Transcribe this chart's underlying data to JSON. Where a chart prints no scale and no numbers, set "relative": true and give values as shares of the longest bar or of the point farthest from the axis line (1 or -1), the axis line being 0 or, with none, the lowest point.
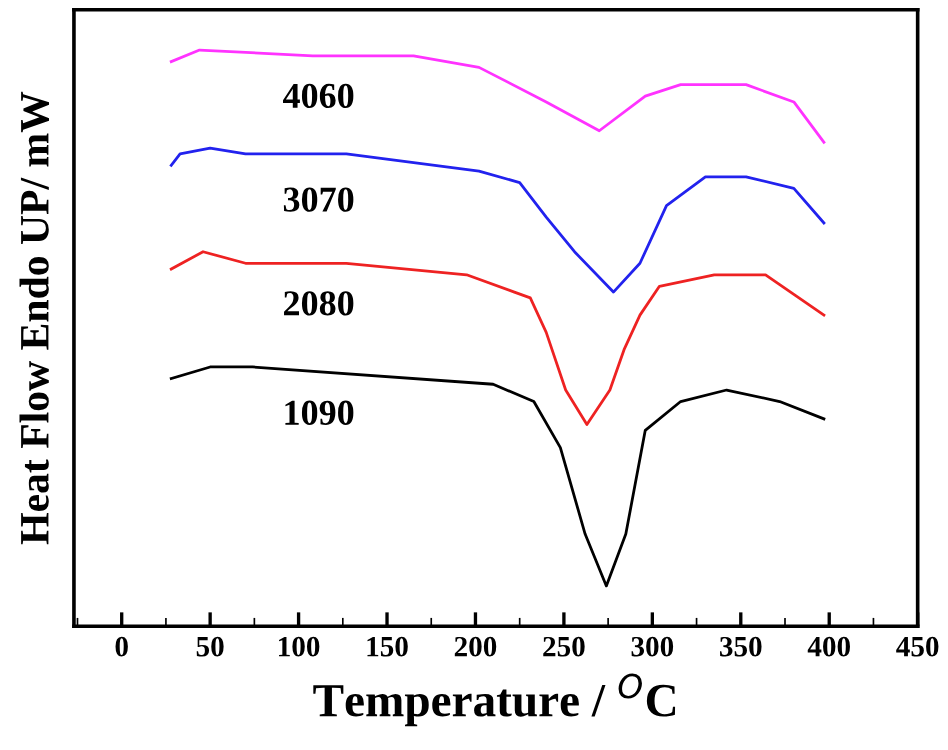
{
  "chart_data": {
    "type": "line",
    "xlabel": "Temperature / $^{O}$C",
    "ylabel": "Heat Flow Endo UP/ mW",
    "relative": true,
    "xlim": [
      -27,
      450
    ],
    "xticks": [
      0,
      50,
      100,
      150,
      200,
      250,
      300,
      350,
      400,
      450
    ],
    "grid": false,
    "legend": false,
    "marker": "none",
    "line_style": "solid",
    "series": [
      {
        "name": "4060",
        "color": "#ff33ff",
        "x": [
          28,
          44,
          108,
          165,
          202,
          240,
          270,
          296,
          316,
          353,
          380,
          397
        ],
        "values": [
          0.98,
          1.0,
          0.99,
          0.99,
          0.97,
          0.91,
          0.86,
          0.92,
          0.94,
          0.94,
          0.91,
          0.84
        ]
      },
      {
        "name": "3070",
        "color": "#2222ee",
        "x": [
          28,
          33,
          50,
          70,
          127,
          202,
          225,
          240,
          256,
          278,
          293,
          308,
          330,
          353,
          380,
          397
        ],
        "values": [
          0.8,
          0.82,
          0.83,
          0.82,
          0.82,
          0.79,
          0.77,
          0.71,
          0.65,
          0.58,
          0.63,
          0.73,
          0.78,
          0.78,
          0.76,
          0.7
        ]
      },
      {
        "name": "2080",
        "color": "#ee2222",
        "x": [
          28,
          46,
          70,
          127,
          195,
          222,
          231,
          240,
          251,
          263,
          276,
          284,
          293,
          304,
          335,
          364,
          397
        ],
        "values": [
          0.62,
          0.65,
          0.63,
          0.63,
          0.61,
          0.58,
          0.57,
          0.51,
          0.41,
          0.35,
          0.41,
          0.48,
          0.54,
          0.59,
          0.61,
          0.61,
          0.54
        ]
      },
      {
        "name": "1090",
        "color": "#000000",
        "x": [
          28,
          50,
          74,
          210,
          233,
          248,
          262,
          274,
          285,
          296,
          316,
          342,
          372,
          397
        ],
        "values": [
          0.43,
          0.45,
          0.45,
          0.42,
          0.39,
          0.31,
          0.16,
          0.07,
          0.16,
          0.34,
          0.39,
          0.41,
          0.39,
          0.36
        ]
      }
    ]
  }
}
